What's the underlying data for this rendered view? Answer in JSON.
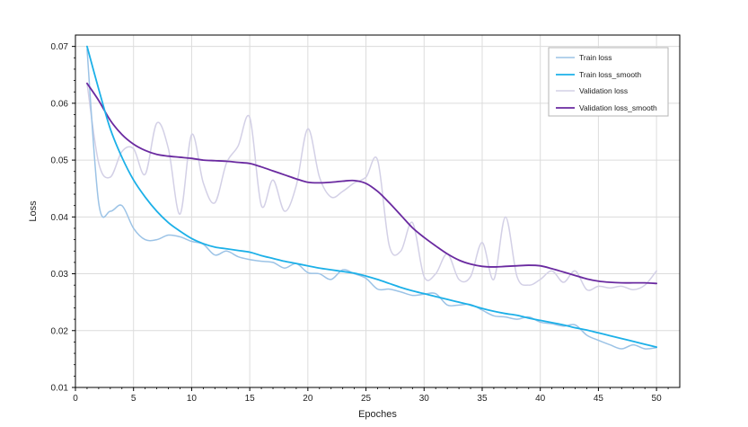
{
  "chart_data": {
    "type": "line",
    "title": "",
    "xlabel": "Epoches",
    "ylabel": "Loss",
    "xlim": [
      0,
      52
    ],
    "ylim": [
      0.01,
      0.072
    ],
    "xticks": [
      0,
      5,
      10,
      15,
      20,
      25,
      30,
      35,
      40,
      45,
      50
    ],
    "yticks": [
      0.01,
      0.02,
      0.03,
      0.04,
      0.05,
      0.06,
      0.07
    ],
    "ytick_labels": [
      "0.01",
      "0.02",
      "0.03",
      "0.04",
      "0.05",
      "0.06",
      "0.07"
    ],
    "grid": true,
    "legend_position": "top-right",
    "x": [
      1,
      2,
      3,
      4,
      5,
      6,
      7,
      8,
      9,
      10,
      11,
      12,
      13,
      14,
      15,
      16,
      17,
      18,
      19,
      20,
      21,
      22,
      23,
      24,
      25,
      26,
      27,
      28,
      29,
      30,
      31,
      32,
      33,
      34,
      35,
      36,
      37,
      38,
      39,
      40,
      41,
      42,
      43,
      44,
      45,
      46,
      47,
      48,
      49,
      50
    ],
    "series": [
      {
        "name": "Train loss",
        "color": "#9cc3e6",
        "values": [
          0.0695,
          0.0425,
          0.041,
          0.042,
          0.038,
          0.036,
          0.036,
          0.0368,
          0.0365,
          0.0357,
          0.0352,
          0.0333,
          0.034,
          0.033,
          0.0325,
          0.0322,
          0.032,
          0.031,
          0.0318,
          0.0302,
          0.03,
          0.029,
          0.0307,
          0.03,
          0.0292,
          0.0273,
          0.0273,
          0.0268,
          0.0262,
          0.0264,
          0.0265,
          0.0245,
          0.0245,
          0.0246,
          0.0236,
          0.0226,
          0.0224,
          0.022,
          0.0224,
          0.0215,
          0.0212,
          0.0208,
          0.021,
          0.0192,
          0.0183,
          0.0175,
          0.0168,
          0.0175,
          0.0168,
          0.017
        ]
      },
      {
        "name": "Train loss_smooth",
        "color": "#1cb0e8",
        "values": [
          0.07,
          0.0625,
          0.0555,
          0.0505,
          0.0465,
          0.0435,
          0.041,
          0.039,
          0.0375,
          0.0362,
          0.0353,
          0.0347,
          0.0344,
          0.0341,
          0.0338,
          0.0332,
          0.0327,
          0.0322,
          0.0318,
          0.0314,
          0.031,
          0.0307,
          0.0304,
          0.0301,
          0.0296,
          0.029,
          0.0283,
          0.0276,
          0.027,
          0.0265,
          0.026,
          0.0255,
          0.025,
          0.0245,
          0.0239,
          0.0234,
          0.023,
          0.0227,
          0.0222,
          0.0218,
          0.0214,
          0.021,
          0.0205,
          0.0201,
          0.0196,
          0.0191,
          0.0186,
          0.0181,
          0.0176,
          0.0171
        ]
      },
      {
        "name": "Validation loss",
        "color": "#d3d0e6",
        "values": [
          0.0635,
          0.0495,
          0.047,
          0.0515,
          0.052,
          0.0475,
          0.0565,
          0.052,
          0.0405,
          0.0545,
          0.046,
          0.0425,
          0.0495,
          0.0525,
          0.0575,
          0.042,
          0.0465,
          0.041,
          0.0455,
          0.0555,
          0.047,
          0.0435,
          0.0445,
          0.046,
          0.047,
          0.05,
          0.035,
          0.034,
          0.039,
          0.0295,
          0.03,
          0.0335,
          0.029,
          0.0295,
          0.0355,
          0.029,
          0.04,
          0.0295,
          0.028,
          0.029,
          0.0305,
          0.0285,
          0.0305,
          0.0272,
          0.0278,
          0.0275,
          0.0278,
          0.0272,
          0.028,
          0.0305
        ]
      },
      {
        "name": "Validation loss_smooth",
        "color": "#6a2aa0",
        "values": [
          0.0635,
          0.0605,
          0.057,
          0.0545,
          0.0528,
          0.0517,
          0.051,
          0.0507,
          0.0505,
          0.0503,
          0.05,
          0.0499,
          0.0498,
          0.0496,
          0.0494,
          0.0488,
          0.0481,
          0.0474,
          0.0467,
          0.0461,
          0.046,
          0.0461,
          0.0463,
          0.0464,
          0.0459,
          0.0445,
          0.0425,
          0.0403,
          0.0381,
          0.0364,
          0.0349,
          0.0335,
          0.0324,
          0.0317,
          0.0313,
          0.0312,
          0.0313,
          0.0314,
          0.0315,
          0.0314,
          0.0309,
          0.0303,
          0.0297,
          0.0291,
          0.0287,
          0.0285,
          0.0284,
          0.0284,
          0.0284,
          0.0283
        ]
      }
    ]
  }
}
